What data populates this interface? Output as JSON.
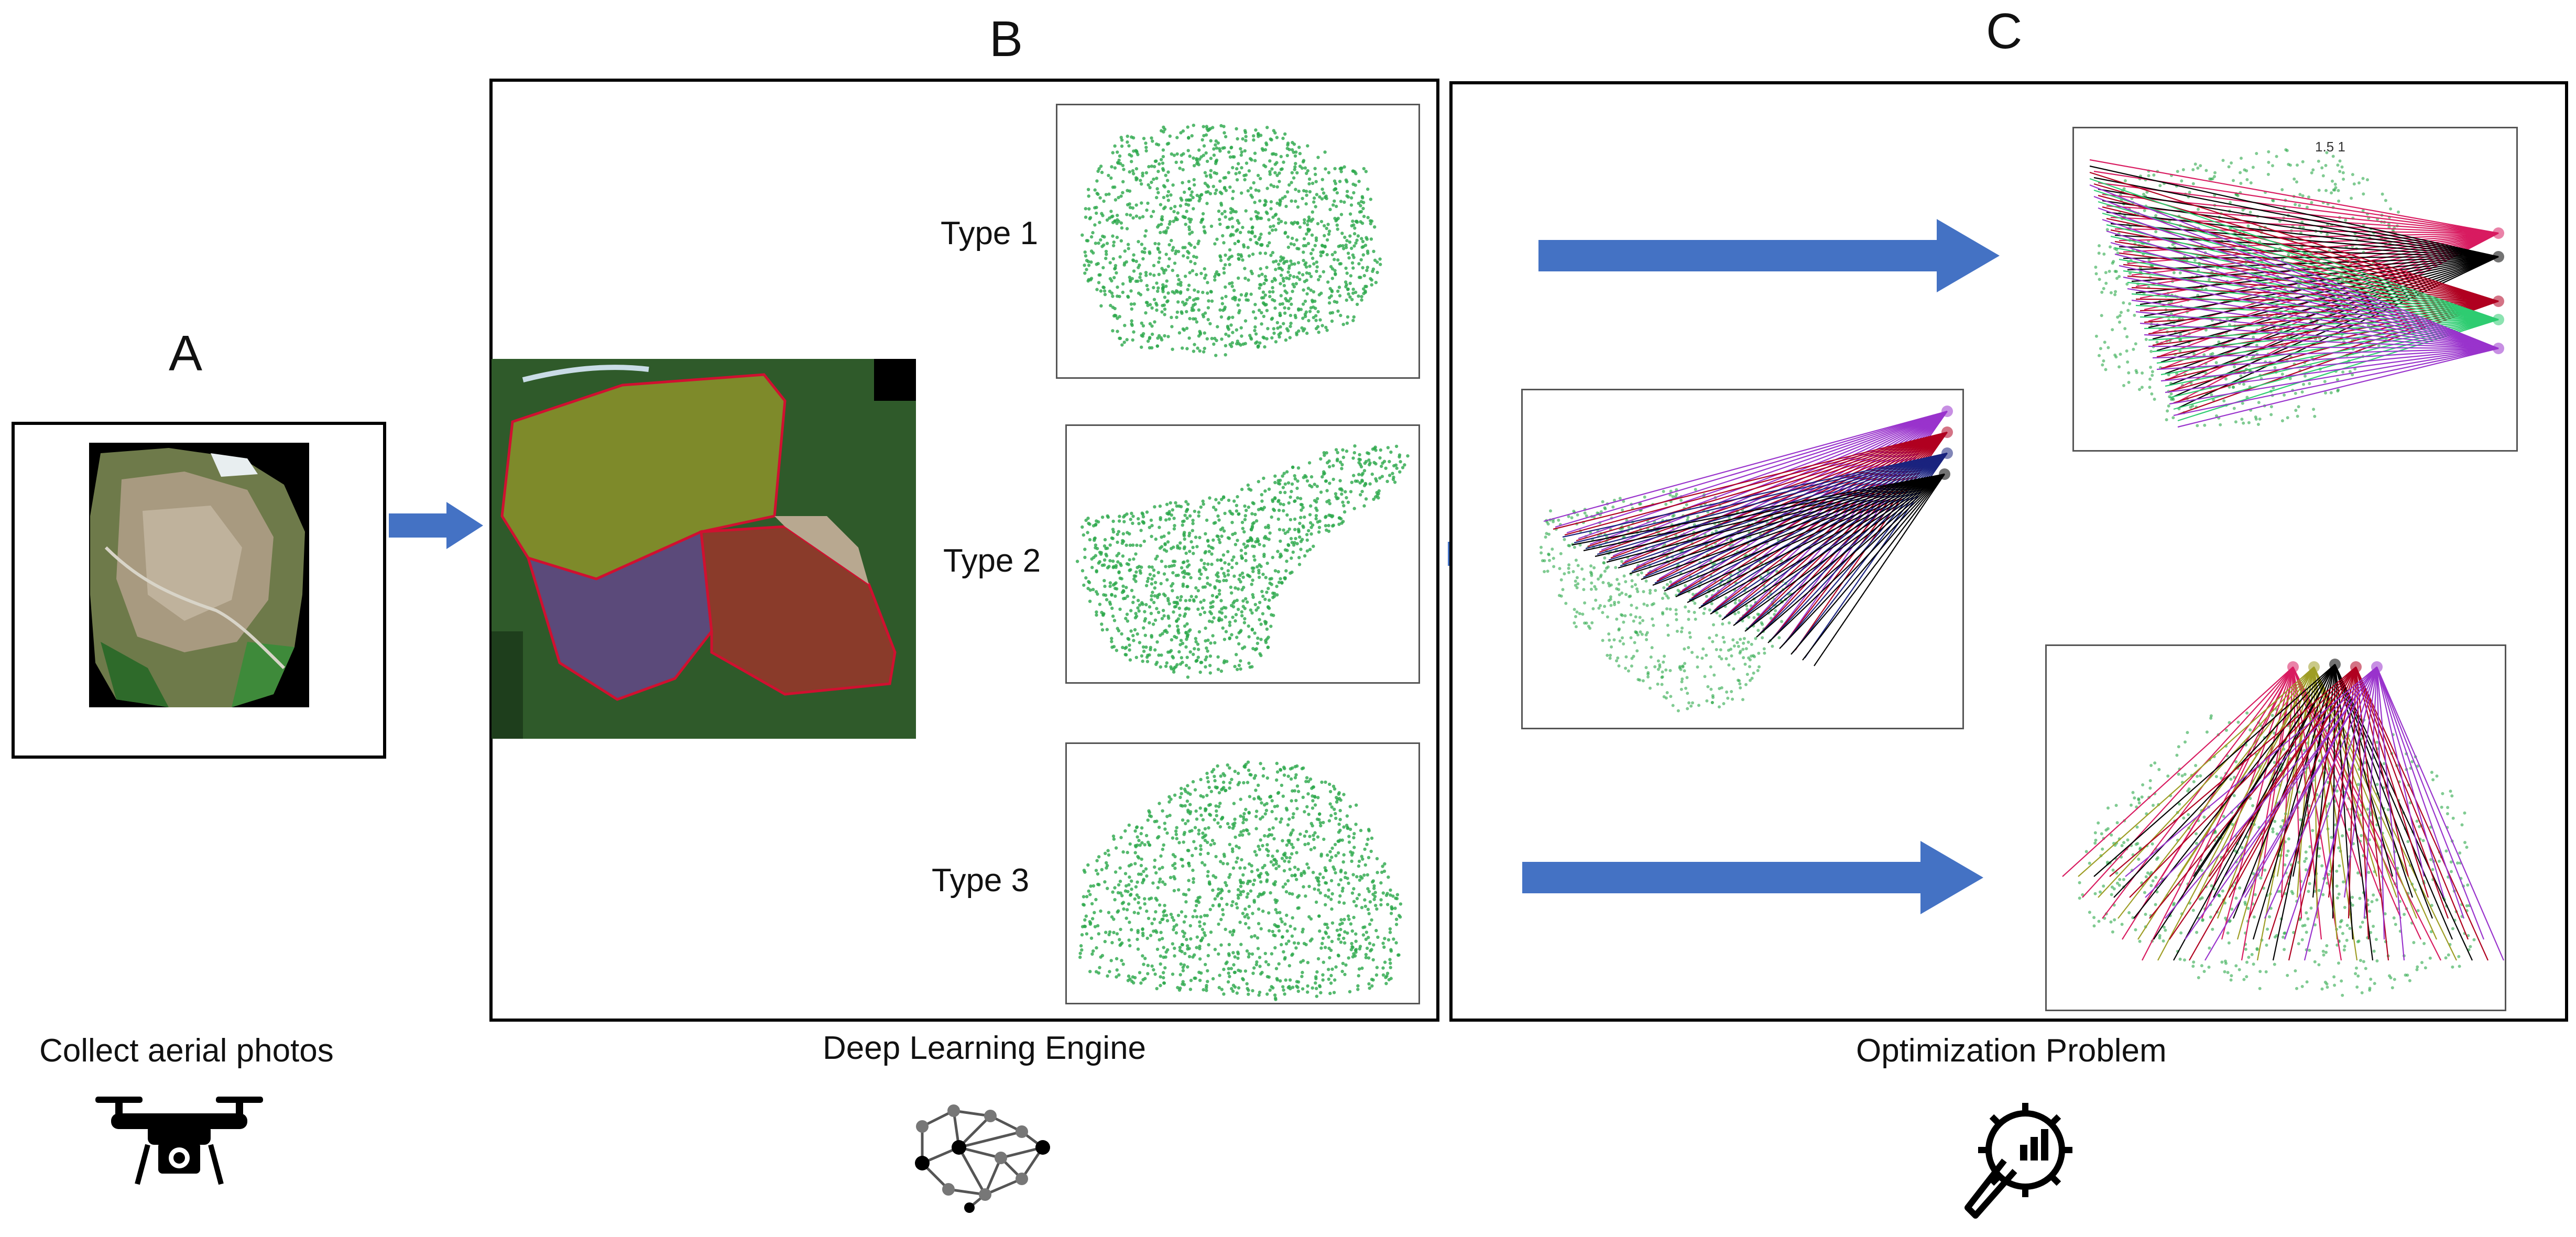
{
  "panels": {
    "a": {
      "letter": "A",
      "caption": "Collect aerial photos",
      "icon": "drone-icon"
    },
    "b": {
      "letter": "B",
      "caption": "Deep Learning Engine",
      "icon": "neural-network-icon",
      "types": [
        "Type 1",
        "Type 2",
        "Type 3"
      ]
    },
    "c": {
      "letter": "C",
      "caption": "Optimization Problem",
      "icon": "optimization-gear-icon",
      "inset_fragment": "1.5 1"
    }
  },
  "colors": {
    "arrow": "#4472C4",
    "points": "#2BA84A",
    "ray_purple": "#9933CC",
    "ray_red": "#B00020",
    "ray_navy": "#1A237E",
    "ray_black": "#000000",
    "ray_crimson": "#D81B60",
    "ray_olive": "#9E9D24",
    "ray_green": "#2ECC71",
    "ray_blue": "#4A7BD0",
    "zone_olive": "#7E8A2A",
    "zone_purple": "#5B4A7A",
    "zone_brown": "#8A3B2A"
  }
}
